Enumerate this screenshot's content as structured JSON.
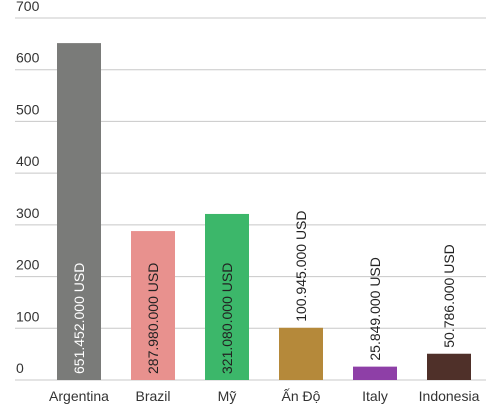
{
  "chart_data": {
    "type": "bar",
    "categories": [
      "Argentina",
      "Brazil",
      "Mỹ",
      "Ấn Độ",
      "Italy",
      "Indonesia"
    ],
    "values": [
      651.452,
      287.98,
      321.08,
      100.945,
      25.849,
      50.786
    ],
    "value_labels": [
      "651.452.000 USD",
      "287.980.000 USD",
      "321.080.000 USD",
      "100.945.000 USD",
      "25.849.000 USD",
      "50.786.000 USD"
    ],
    "colors": [
      "#7a7b79",
      "#e8918e",
      "#3cb76a",
      "#b5893a",
      "#8e3fa7",
      "#4f3029"
    ],
    "ylim": [
      0,
      700
    ],
    "yticks": [
      0,
      100,
      200,
      300,
      400,
      500,
      600,
      700
    ],
    "grid": true
  }
}
